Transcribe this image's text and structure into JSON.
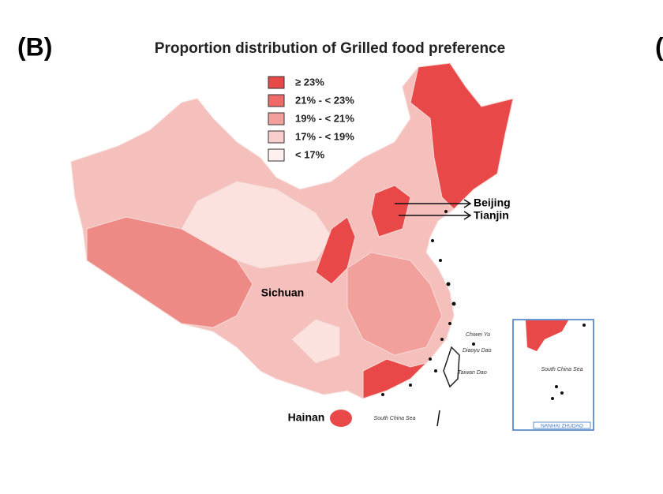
{
  "panel_label": "(B)",
  "edge_label": "(",
  "title": "Proportion distribution of Grilled food preference",
  "legend": [
    {
      "label": "≥ 23%",
      "color": "#e84848"
    },
    {
      "label": "21% - < 23%",
      "color": "#ee6b68"
    },
    {
      "label": "19% - < 21%",
      "color": "#f2a09c"
    },
    {
      "label": "17% - < 19%",
      "color": "#f8cfcc"
    },
    {
      "label": "< 17%",
      "color": "#fdf0ee"
    }
  ],
  "places": {
    "beijing": "Beijing",
    "tianjin": "Tianjin",
    "sichuan": "Sichuan",
    "hainan": "Hainan",
    "sea": "South China Sea",
    "chiwei": "Chiwei Yu",
    "diaoyu": "Diaoyu Dao",
    "taiwan": "Taiwan Dao"
  },
  "inset": {
    "sea": "South China Sea",
    "islands": "NANHAI ZHUDAO"
  }
}
